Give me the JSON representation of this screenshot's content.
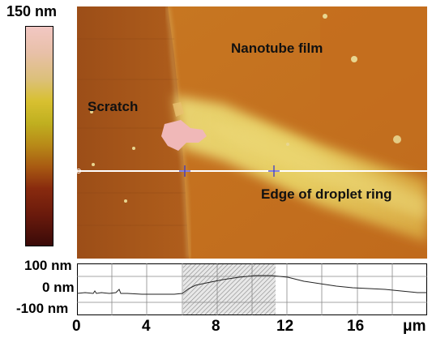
{
  "color_scale": {
    "max_label": "150 nm"
  },
  "image": {
    "labels": {
      "nanotube_film": "Nanotube film",
      "scratch": "Scratch",
      "edge_of_droplet_ring": "Edge of droplet ring"
    }
  },
  "profile": {
    "y_labels": [
      "100 nm",
      "0 nm",
      "-100 nm"
    ],
    "x_ticks": [
      "0",
      "4",
      "8",
      "12",
      "16"
    ],
    "x_unit": "μm"
  }
}
